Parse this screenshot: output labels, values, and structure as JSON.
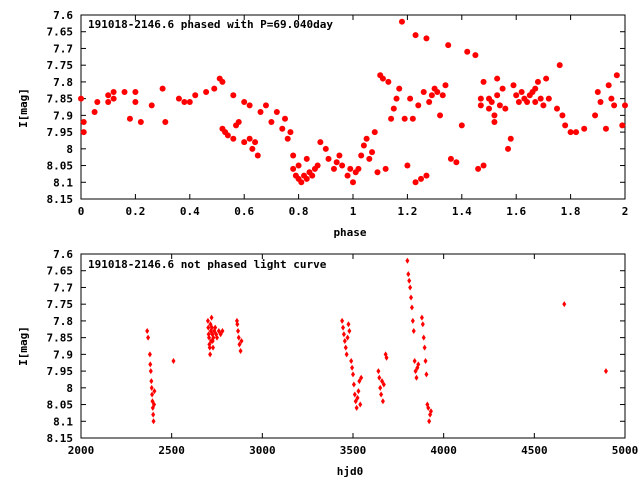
{
  "chart_data": [
    {
      "type": "scatter",
      "title": "191018-2146.6 phased with P=69.040day",
      "xlabel": "phase",
      "ylabel": "I[mag]",
      "xlim": [
        0,
        2
      ],
      "ylim": [
        8.15,
        7.6
      ],
      "y_inverted": true,
      "xticks": [
        "0",
        "0.2",
        "0.4",
        "0.6",
        "0.8",
        "1",
        "1.2",
        "1.4",
        "1.6",
        "1.8",
        "2"
      ],
      "xtick_values": [
        0,
        0.2,
        0.4,
        0.6,
        0.8,
        1.0,
        1.2,
        1.4,
        1.6,
        1.8,
        2.0
      ],
      "yticks": [
        "7.6",
        "7.65",
        "7.7",
        "7.75",
        "7.8",
        "7.85",
        "7.9",
        "7.95",
        "8",
        "8.05",
        "8.1",
        "8.15"
      ],
      "ytick_values": [
        7.6,
        7.65,
        7.7,
        7.75,
        7.8,
        7.85,
        7.9,
        7.95,
        8.0,
        8.05,
        8.1,
        8.15
      ],
      "marker": "filled-circle",
      "color": "#ff0000",
      "points": [
        [
          0.0,
          7.85
        ],
        [
          0.01,
          7.92
        ],
        [
          0.01,
          7.95
        ],
        [
          0.05,
          7.89
        ],
        [
          0.06,
          7.86
        ],
        [
          0.1,
          7.84
        ],
        [
          0.1,
          7.86
        ],
        [
          0.12,
          7.83
        ],
        [
          0.12,
          7.85
        ],
        [
          0.16,
          7.83
        ],
        [
          0.18,
          7.91
        ],
        [
          0.2,
          7.83
        ],
        [
          0.2,
          7.86
        ],
        [
          0.22,
          7.92
        ],
        [
          0.26,
          7.87
        ],
        [
          0.3,
          7.82
        ],
        [
          0.31,
          7.92
        ],
        [
          0.36,
          7.85
        ],
        [
          0.38,
          7.86
        ],
        [
          0.4,
          7.86
        ],
        [
          0.42,
          7.84
        ],
        [
          0.46,
          7.83
        ],
        [
          0.49,
          7.82
        ],
        [
          0.51,
          7.79
        ],
        [
          0.52,
          7.8
        ],
        [
          0.52,
          7.94
        ],
        [
          0.53,
          7.95
        ],
        [
          0.54,
          7.96
        ],
        [
          0.56,
          7.84
        ],
        [
          0.56,
          7.97
        ],
        [
          0.57,
          7.93
        ],
        [
          0.58,
          7.92
        ],
        [
          0.6,
          7.86
        ],
        [
          0.6,
          7.98
        ],
        [
          0.62,
          7.87
        ],
        [
          0.62,
          7.97
        ],
        [
          0.63,
          8.0
        ],
        [
          0.64,
          7.98
        ],
        [
          0.65,
          8.02
        ],
        [
          0.66,
          7.89
        ],
        [
          0.68,
          7.87
        ],
        [
          0.7,
          7.92
        ],
        [
          0.72,
          7.89
        ],
        [
          0.74,
          7.94
        ],
        [
          0.75,
          7.91
        ],
        [
          0.76,
          7.97
        ],
        [
          0.77,
          7.95
        ],
        [
          0.78,
          8.02
        ],
        [
          0.78,
          8.06
        ],
        [
          0.79,
          8.08
        ],
        [
          0.8,
          8.09
        ],
        [
          0.8,
          8.05
        ],
        [
          0.81,
          8.1
        ],
        [
          0.82,
          8.08
        ],
        [
          0.83,
          8.09
        ],
        [
          0.83,
          8.03
        ],
        [
          0.84,
          8.07
        ],
        [
          0.85,
          8.08
        ],
        [
          0.86,
          8.06
        ],
        [
          0.87,
          8.05
        ],
        [
          0.88,
          7.98
        ],
        [
          0.9,
          8.0
        ],
        [
          0.91,
          8.03
        ],
        [
          0.93,
          8.06
        ],
        [
          0.94,
          8.04
        ],
        [
          0.95,
          8.02
        ],
        [
          0.96,
          8.05
        ],
        [
          0.98,
          8.08
        ],
        [
          0.99,
          8.06
        ],
        [
          1.0,
          8.1
        ],
        [
          1.01,
          8.07
        ],
        [
          1.02,
          8.06
        ],
        [
          1.03,
          8.02
        ],
        [
          1.04,
          7.99
        ],
        [
          1.05,
          7.97
        ],
        [
          1.06,
          8.03
        ],
        [
          1.07,
          8.01
        ],
        [
          1.08,
          7.95
        ],
        [
          1.09,
          8.07
        ],
        [
          1.1,
          7.78
        ],
        [
          1.11,
          7.79
        ],
        [
          1.12,
          8.06
        ],
        [
          1.13,
          7.8
        ],
        [
          1.14,
          7.91
        ],
        [
          1.15,
          7.88
        ],
        [
          1.16,
          7.85
        ],
        [
          1.17,
          7.82
        ],
        [
          1.18,
          7.62
        ],
        [
          1.19,
          7.91
        ],
        [
          1.2,
          8.05
        ],
        [
          1.21,
          7.85
        ],
        [
          1.22,
          7.91
        ],
        [
          1.23,
          7.66
        ],
        [
          1.23,
          8.1
        ],
        [
          1.24,
          7.87
        ],
        [
          1.25,
          8.09
        ],
        [
          1.26,
          7.83
        ],
        [
          1.27,
          7.67
        ],
        [
          1.27,
          8.08
        ],
        [
          1.28,
          7.86
        ],
        [
          1.29,
          7.84
        ],
        [
          1.3,
          7.82
        ],
        [
          1.31,
          7.83
        ],
        [
          1.32,
          7.9
        ],
        [
          1.33,
          7.84
        ],
        [
          1.34,
          7.81
        ],
        [
          1.35,
          7.69
        ],
        [
          1.36,
          8.03
        ],
        [
          1.38,
          8.04
        ],
        [
          1.4,
          7.93
        ],
        [
          1.42,
          7.71
        ],
        [
          1.45,
          7.72
        ],
        [
          1.46,
          8.06
        ],
        [
          1.48,
          8.05
        ],
        [
          1.47,
          7.85
        ],
        [
          1.47,
          7.87
        ],
        [
          1.48,
          7.8
        ],
        [
          1.5,
          7.85
        ],
        [
          1.5,
          7.88
        ],
        [
          1.51,
          7.86
        ],
        [
          1.52,
          7.9
        ],
        [
          1.52,
          7.92
        ],
        [
          1.53,
          7.79
        ],
        [
          1.53,
          7.84
        ],
        [
          1.54,
          7.87
        ],
        [
          1.55,
          7.82
        ],
        [
          1.56,
          7.88
        ],
        [
          1.57,
          8.0
        ],
        [
          1.58,
          7.97
        ],
        [
          1.59,
          7.81
        ],
        [
          1.6,
          7.84
        ],
        [
          1.61,
          7.86
        ],
        [
          1.62,
          7.83
        ],
        [
          1.63,
          7.85
        ],
        [
          1.64,
          7.86
        ],
        [
          1.65,
          7.84
        ],
        [
          1.66,
          7.83
        ],
        [
          1.67,
          7.82
        ],
        [
          1.67,
          7.86
        ],
        [
          1.68,
          7.8
        ],
        [
          1.69,
          7.85
        ],
        [
          1.7,
          7.87
        ],
        [
          1.71,
          7.79
        ],
        [
          1.72,
          7.85
        ],
        [
          1.75,
          7.88
        ],
        [
          1.76,
          7.75
        ],
        [
          1.77,
          7.9
        ],
        [
          1.78,
          7.93
        ],
        [
          1.8,
          7.95
        ],
        [
          1.82,
          7.95
        ],
        [
          1.85,
          7.94
        ],
        [
          1.89,
          7.9
        ],
        [
          1.9,
          7.83
        ],
        [
          1.91,
          7.86
        ],
        [
          1.93,
          7.94
        ],
        [
          1.94,
          7.81
        ],
        [
          1.95,
          7.85
        ],
        [
          1.96,
          7.87
        ],
        [
          1.97,
          7.78
        ],
        [
          1.99,
          7.93
        ],
        [
          2.0,
          7.87
        ]
      ]
    },
    {
      "type": "scatter",
      "title": "191018-2146.6 not phased light curve",
      "xlabel": "hjd0",
      "ylabel": "I[mag]",
      "xlim": [
        2000,
        5000
      ],
      "ylim": [
        8.15,
        7.6
      ],
      "y_inverted": true,
      "xticks": [
        "2000",
        "2500",
        "3000",
        "3500",
        "4000",
        "4500",
        "5000"
      ],
      "xtick_values": [
        2000,
        2500,
        3000,
        3500,
        4000,
        4500,
        5000
      ],
      "yticks": [
        "7.6",
        "7.65",
        "7.7",
        "7.75",
        "7.8",
        "7.85",
        "7.9",
        "7.95",
        "8",
        "8.05",
        "8.1",
        "8.15"
      ],
      "ytick_values": [
        7.6,
        7.65,
        7.7,
        7.75,
        7.8,
        7.85,
        7.9,
        7.95,
        8.0,
        8.05,
        8.1,
        8.15
      ],
      "marker": "diamond",
      "color": "#ff0000",
      "points": [
        [
          2365,
          7.83
        ],
        [
          2370,
          7.85
        ],
        [
          2380,
          7.9
        ],
        [
          2382,
          7.93
        ],
        [
          2385,
          7.95
        ],
        [
          2388,
          7.98
        ],
        [
          2390,
          8.0
        ],
        [
          2392,
          8.02
        ],
        [
          2394,
          8.04
        ],
        [
          2396,
          8.06
        ],
        [
          2398,
          8.08
        ],
        [
          2400,
          8.1
        ],
        [
          2403,
          8.05
        ],
        [
          2405,
          8.01
        ],
        [
          2510,
          7.92
        ],
        [
          2700,
          7.8
        ],
        [
          2702,
          7.82
        ],
        [
          2704,
          7.84
        ],
        [
          2706,
          7.85
        ],
        [
          2708,
          7.87
        ],
        [
          2710,
          7.88
        ],
        [
          2712,
          7.9
        ],
        [
          2714,
          7.81
        ],
        [
          2716,
          7.83
        ],
        [
          2718,
          7.86
        ],
        [
          2720,
          7.79
        ],
        [
          2722,
          7.82
        ],
        [
          2724,
          7.84
        ],
        [
          2726,
          7.86
        ],
        [
          2728,
          7.88
        ],
        [
          2730,
          7.85
        ],
        [
          2735,
          7.83
        ],
        [
          2740,
          7.82
        ],
        [
          2745,
          7.84
        ],
        [
          2750,
          7.85
        ],
        [
          2760,
          7.83
        ],
        [
          2770,
          7.84
        ],
        [
          2780,
          7.83
        ],
        [
          2860,
          7.8
        ],
        [
          2862,
          7.81
        ],
        [
          2866,
          7.83
        ],
        [
          2870,
          7.85
        ],
        [
          2874,
          7.87
        ],
        [
          2880,
          7.89
        ],
        [
          2885,
          7.86
        ],
        [
          3440,
          7.8
        ],
        [
          3445,
          7.82
        ],
        [
          3450,
          7.84
        ],
        [
          3455,
          7.86
        ],
        [
          3460,
          7.88
        ],
        [
          3465,
          7.9
        ],
        [
          3470,
          7.85
        ],
        [
          3475,
          7.81
        ],
        [
          3480,
          7.83
        ],
        [
          3490,
          7.92
        ],
        [
          3495,
          7.94
        ],
        [
          3500,
          7.96
        ],
        [
          3505,
          7.99
        ],
        [
          3510,
          8.02
        ],
        [
          3515,
          8.04
        ],
        [
          3520,
          8.06
        ],
        [
          3525,
          8.03
        ],
        [
          3530,
          8.01
        ],
        [
          3535,
          7.98
        ],
        [
          3540,
          8.05
        ],
        [
          3545,
          7.97
        ],
        [
          3640,
          7.95
        ],
        [
          3645,
          7.97
        ],
        [
          3650,
          8.0
        ],
        [
          3655,
          8.02
        ],
        [
          3660,
          7.98
        ],
        [
          3665,
          8.04
        ],
        [
          3670,
          7.99
        ],
        [
          3680,
          7.9
        ],
        [
          3685,
          7.91
        ],
        [
          3800,
          7.62
        ],
        [
          3805,
          7.66
        ],
        [
          3810,
          7.68
        ],
        [
          3815,
          7.7
        ],
        [
          3820,
          7.73
        ],
        [
          3825,
          7.76
        ],
        [
          3830,
          7.8
        ],
        [
          3835,
          7.83
        ],
        [
          3840,
          7.92
        ],
        [
          3845,
          7.95
        ],
        [
          3850,
          7.97
        ],
        [
          3855,
          7.94
        ],
        [
          3860,
          7.93
        ],
        [
          3880,
          7.79
        ],
        [
          3885,
          7.81
        ],
        [
          3890,
          7.85
        ],
        [
          3895,
          7.88
        ],
        [
          3900,
          7.92
        ],
        [
          3905,
          7.96
        ],
        [
          3910,
          8.05
        ],
        [
          3915,
          8.06
        ],
        [
          3920,
          8.1
        ],
        [
          3925,
          8.08
        ],
        [
          3930,
          8.07
        ],
        [
          4665,
          7.75
        ],
        [
          4895,
          7.95
        ]
      ]
    }
  ]
}
